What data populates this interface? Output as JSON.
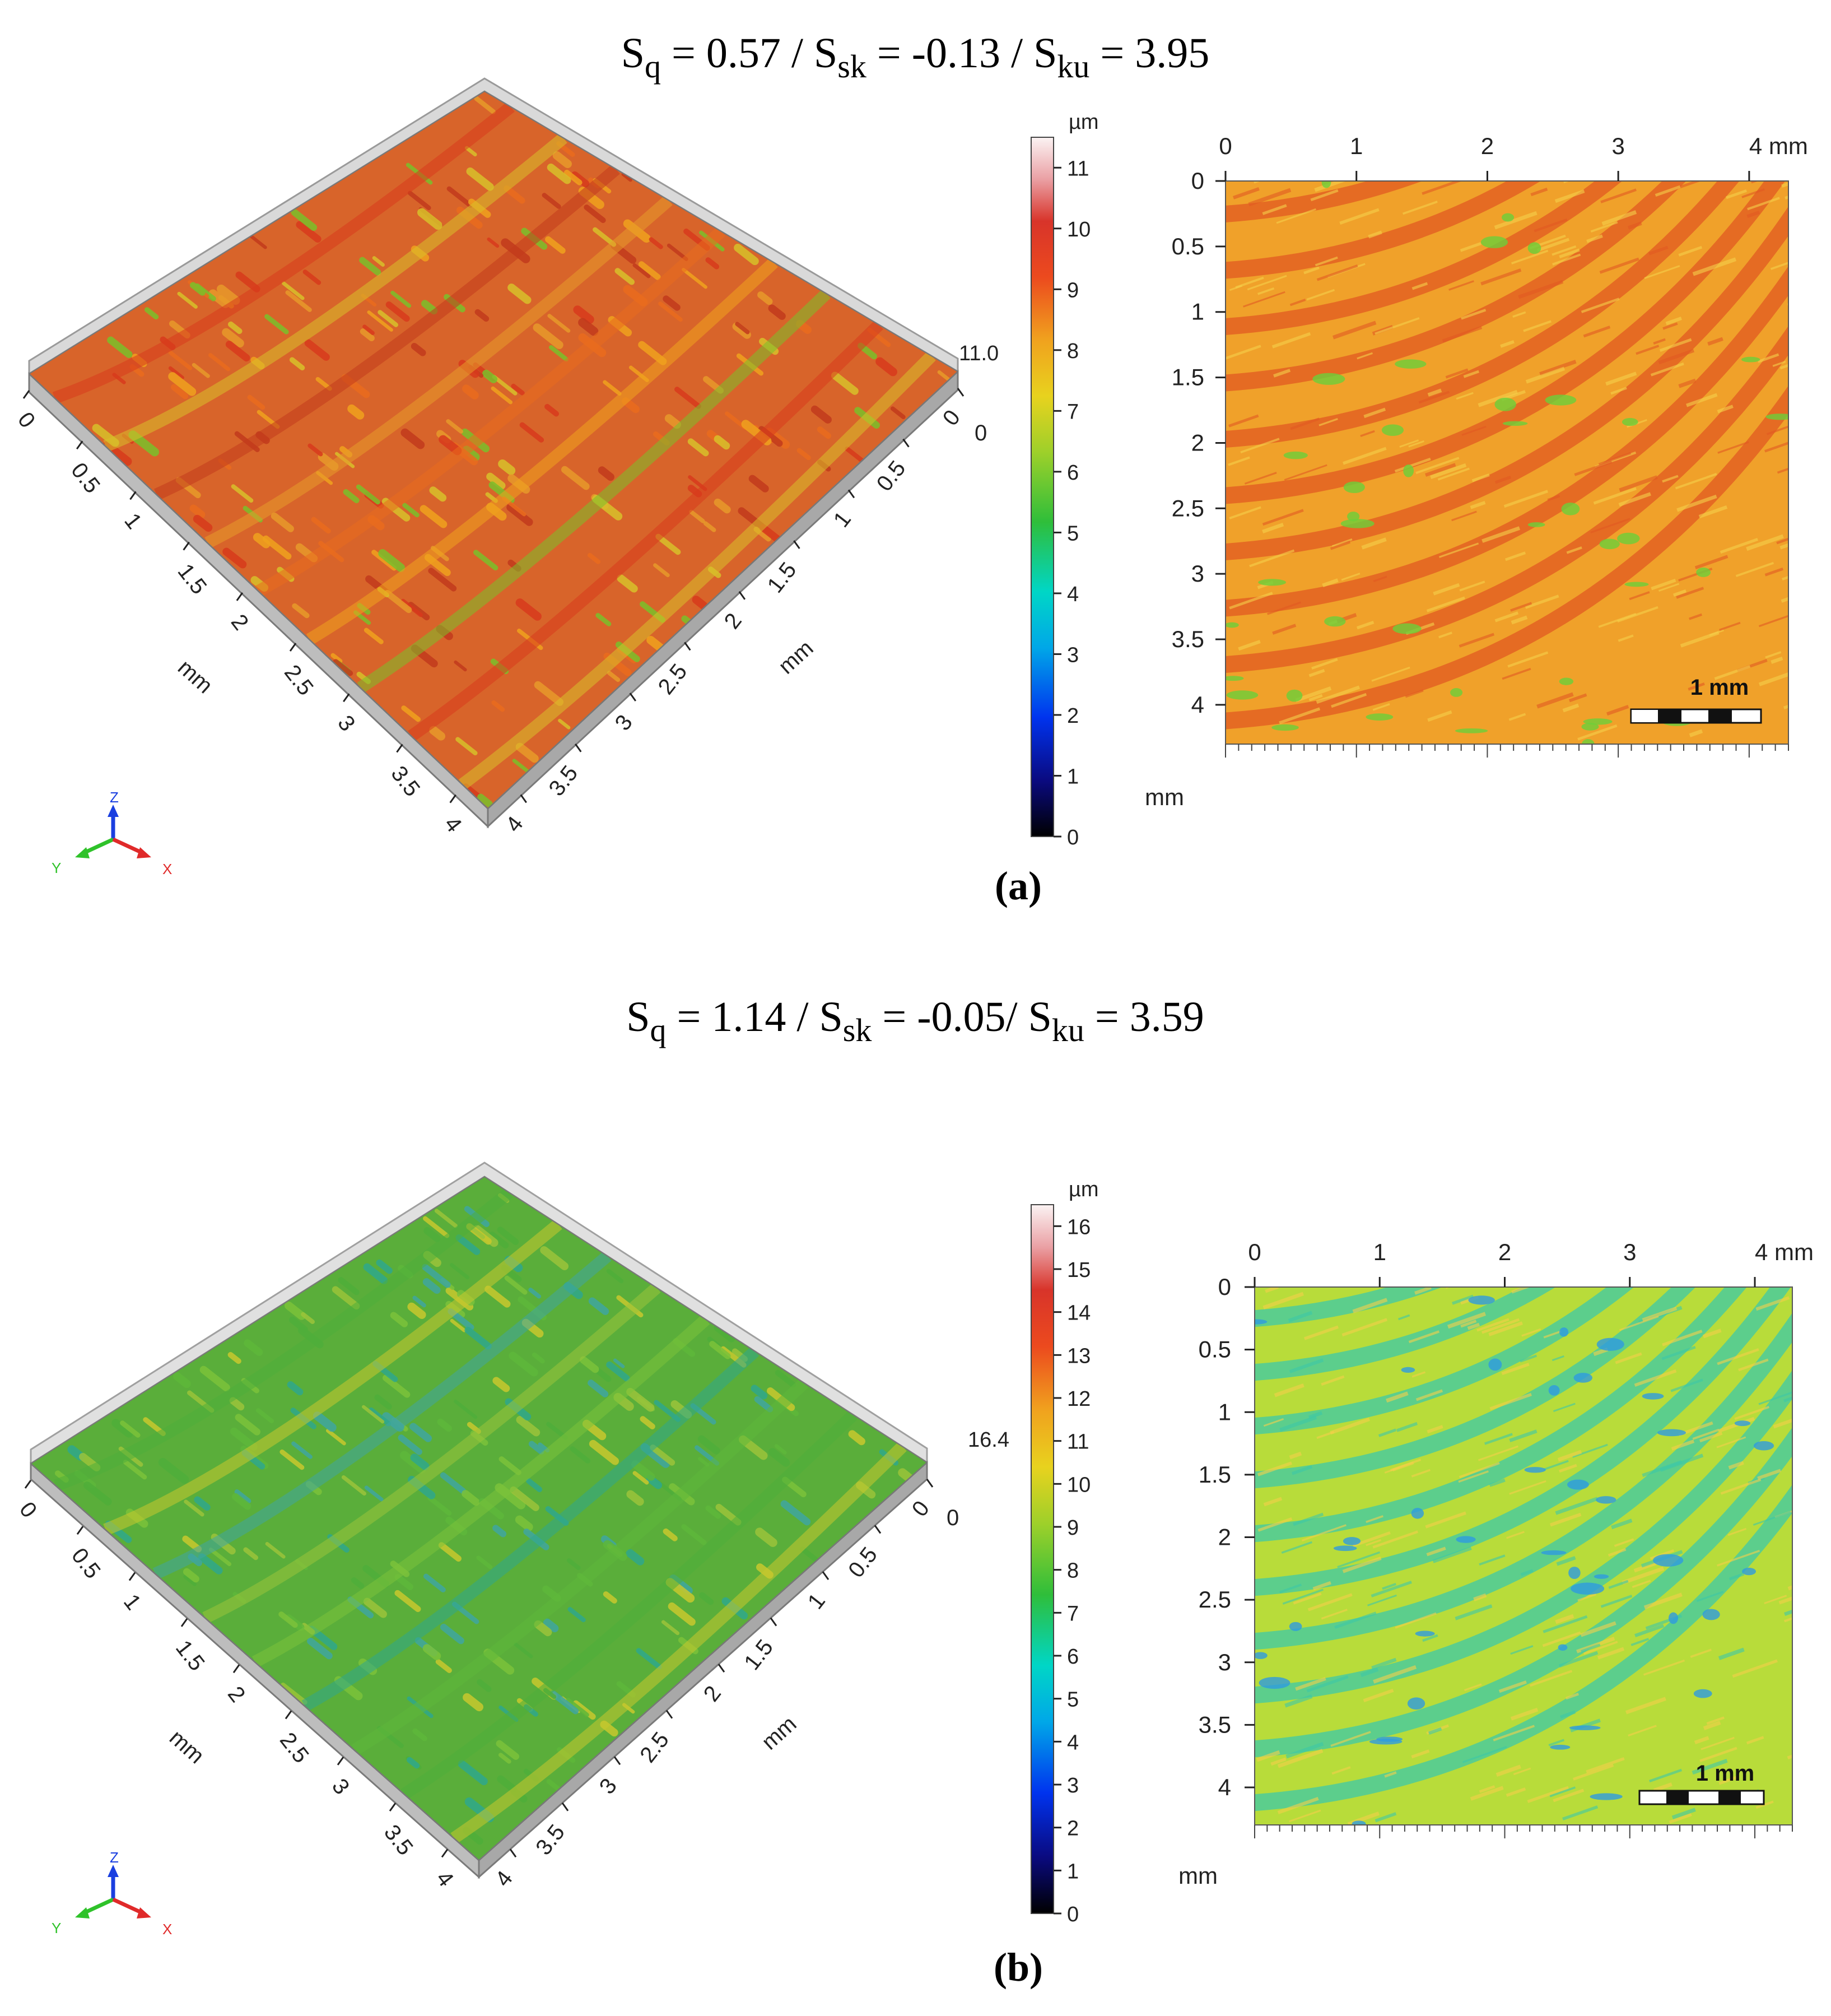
{
  "panels": [
    {
      "id": "a",
      "stats": {
        "sq": "0.57",
        "ssk": "-0.13",
        "sku": "3.95",
        "sep1": " / ",
        "sep2": " / "
      },
      "panel_label": "(a)",
      "view3d": {
        "x_axis_ticks": [
          "0",
          "0.5",
          "1",
          "1.5",
          "2",
          "2.5",
          "3",
          "3.5",
          "4"
        ],
        "y_axis_ticks": [
          "0",
          "0.5",
          "1",
          "1.5",
          "2",
          "2.5",
          "3",
          "3.5",
          "4"
        ],
        "x_axis_unit": "mm",
        "y_axis_unit": "mm",
        "z_top_label": "11.0",
        "z_zero_label": "0",
        "palette": [
          "#d83a1c",
          "#ea6c1e",
          "#d8c02a",
          "#f0a21e",
          "#c23a1c",
          "#7bc02a",
          "#e89a2a"
        ]
      },
      "colorbar": {
        "unit": "µm",
        "min": 0,
        "max": 11.5,
        "ticks": [
          "0",
          "1",
          "2",
          "3",
          "4",
          "5",
          "6",
          "7",
          "8",
          "9",
          "10",
          "11"
        ]
      },
      "map2d": {
        "x_ticks": [
          "0",
          "1",
          "2",
          "3",
          "4 mm"
        ],
        "y_ticks": [
          "0",
          "0.5",
          "1",
          "1.5",
          "2",
          "2.5",
          "3",
          "3.5",
          "4"
        ],
        "y_unit": "mm",
        "x_max_mm": 4.3,
        "y_max_mm": 4.3,
        "scalebar_label": "1 mm",
        "base_color": "#f0a12a",
        "band_color": "#e25a22",
        "spot_color": "#6ccf3a"
      }
    },
    {
      "id": "b",
      "stats": {
        "sq": "1.14",
        "ssk": "-0.05",
        "sku": "3.59",
        "sep1": " / ",
        "sep2": "/ "
      },
      "panel_label": "(b)",
      "view3d": {
        "x_axis_ticks": [
          "0",
          "0.5",
          "1",
          "1.5",
          "2",
          "2.5",
          "3",
          "3.5",
          "4"
        ],
        "y_axis_ticks": [
          "0",
          "0.5",
          "1",
          "1.5",
          "2",
          "2.5",
          "3",
          "3.5",
          "4"
        ],
        "x_axis_unit": "mm",
        "y_axis_unit": "mm",
        "z_top_label": "16.4",
        "z_zero_label": "0",
        "palette": [
          "#4fae3a",
          "#7cc23a",
          "#c8c82e",
          "#2fa88c",
          "#3fa6a0",
          "#5eb83a",
          "#9bc43a"
        ]
      },
      "colorbar": {
        "unit": "µm",
        "min": 0,
        "max": 16.5,
        "ticks": [
          "0",
          "1",
          "2",
          "3",
          "4",
          "5",
          "6",
          "7",
          "8",
          "9",
          "10",
          "11",
          "12",
          "13",
          "14",
          "15",
          "16"
        ]
      },
      "map2d": {
        "x_ticks": [
          "0",
          "1",
          "2",
          "3",
          "4 mm"
        ],
        "y_ticks": [
          "0",
          "0.5",
          "1",
          "1.5",
          "2",
          "2.5",
          "3",
          "3.5",
          "4"
        ],
        "y_unit": "mm",
        "x_max_mm": 4.3,
        "y_max_mm": 4.3,
        "scalebar_label": "1 mm",
        "base_color": "#b8dc3a",
        "band_color": "#3ec9a8",
        "spot_color": "#2e9be0"
      }
    }
  ],
  "axis_triad": {
    "x": "X",
    "y": "Y",
    "z": "Z"
  },
  "chart_data": [
    {
      "type": "heatmap",
      "title": "Sq = 0.57 / Ssk = -0.13 / Sku = 3.95",
      "panel": "(a)",
      "xlabel": "mm",
      "ylabel": "mm",
      "xlim": [
        0,
        4.3
      ],
      "ylim": [
        0,
        4.3
      ],
      "x_ticks": [
        0,
        1,
        2,
        3,
        4
      ],
      "y_ticks": [
        0,
        0.5,
        1,
        1.5,
        2,
        2.5,
        3,
        3.5,
        4
      ],
      "colorbar_label": "µm",
      "colorbar_range": [
        0,
        11.5
      ],
      "z_range_3d": [
        0,
        11.0
      ],
      "scale_bar": "1 mm",
      "Sq": 0.57,
      "Ssk": -0.13,
      "Sku": 3.95
    },
    {
      "type": "heatmap",
      "title": "Sq = 1.14 / Ssk = -0.05/ Sku = 3.59",
      "panel": "(b)",
      "xlabel": "mm",
      "ylabel": "mm",
      "xlim": [
        0,
        4.3
      ],
      "ylim": [
        0,
        4.3
      ],
      "x_ticks": [
        0,
        1,
        2,
        3,
        4
      ],
      "y_ticks": [
        0,
        0.5,
        1,
        1.5,
        2,
        2.5,
        3,
        3.5,
        4
      ],
      "colorbar_label": "µm",
      "colorbar_range": [
        0,
        16.5
      ],
      "z_range_3d": [
        0,
        16.4
      ],
      "scale_bar": "1 mm",
      "Sq": 1.14,
      "Ssk": -0.05,
      "Sku": 3.59
    }
  ]
}
